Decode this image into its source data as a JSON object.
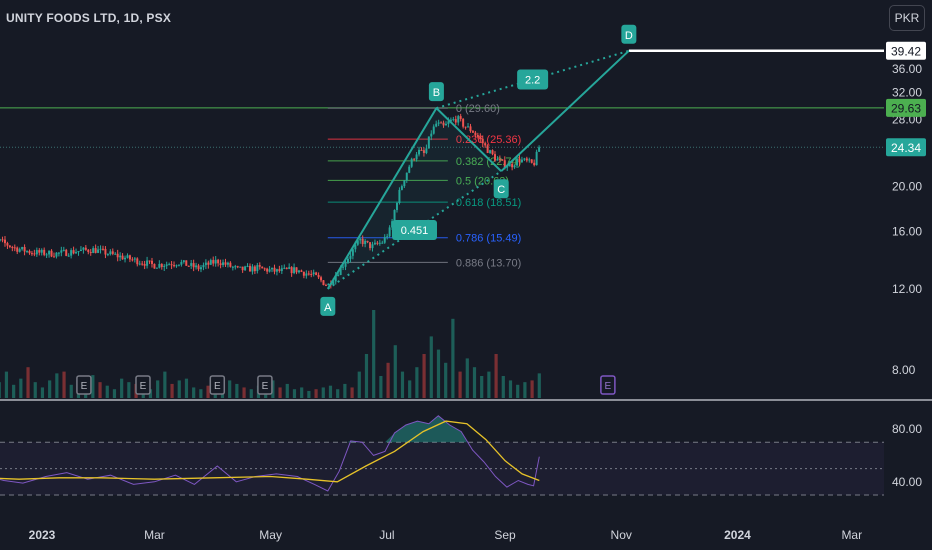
{
  "header": {
    "title": "UNITY FOODS LTD, 1D, PSX",
    "currency_label": "PKR"
  },
  "colors": {
    "background": "#161a25",
    "up": "#26a69a",
    "down": "#ef5350",
    "pattern": "#26a69a",
    "rsi_line": "#7e57c2",
    "rsi_ma": "#e6c229",
    "text": "#d1d4dc",
    "axis_text": "#d1d4dc",
    "fib_red": "#f23645",
    "fib_green": "#4caf50",
    "fib_teal": "#089981",
    "fib_gray": "#787b86",
    "fib_blue": "#2962ff"
  },
  "chart_data": [
    {
      "type": "candlestick",
      "title": "UNITY FOODS LTD, 1D, PSX",
      "ylim": [
        6.5,
        41.5
      ],
      "y_ticks": [
        {
          "value": 36,
          "label": "36.00"
        },
        {
          "value": 32,
          "label": "32.00"
        },
        {
          "value": 28,
          "label": "28.00"
        },
        {
          "value": 20,
          "label": "20.00"
        },
        {
          "value": 16,
          "label": "16.00"
        },
        {
          "value": 12,
          "label": "12.00"
        },
        {
          "value": 8,
          "label": "8.00"
        }
      ],
      "price_tags": [
        {
          "value": 39.42,
          "label": "39.42",
          "style": "white"
        },
        {
          "value": 29.63,
          "label": "29.63",
          "style": "green"
        },
        {
          "value": 24.34,
          "label": "24.34",
          "style": "teal"
        }
      ],
      "horizontal_lines": [
        {
          "value": 29.63,
          "style": "green-solid"
        },
        {
          "value": 24.34,
          "style": "teal-dotted"
        },
        {
          "value": 39.42,
          "style": "white-solid"
        }
      ],
      "x_ticks": [
        {
          "date": "2023-01-01",
          "label": "2023",
          "bold": true
        },
        {
          "date": "2023-03-01",
          "label": "Mar"
        },
        {
          "date": "2023-05-01",
          "label": "May"
        },
        {
          "date": "2023-07-01",
          "label": "Jul"
        },
        {
          "date": "2023-09-01",
          "label": "Sep"
        },
        {
          "date": "2023-11-01",
          "label": "Nov"
        },
        {
          "date": "2024-01-01",
          "label": "2024",
          "bold": true
        },
        {
          "date": "2024-03-01",
          "label": "Mar"
        }
      ],
      "price_path": [
        [
          "2022-12-01",
          15.6
        ],
        [
          "2022-12-10",
          15.2
        ],
        [
          "2022-12-18",
          14.7
        ],
        [
          "2022-12-27",
          14.4
        ],
        [
          "2023-01-08",
          14.3
        ],
        [
          "2023-01-20",
          14.5
        ],
        [
          "2023-01-28",
          14.6
        ],
        [
          "2023-02-08",
          14.2
        ],
        [
          "2023-02-20",
          13.8
        ],
        [
          "2023-03-01",
          13.5
        ],
        [
          "2023-03-14",
          13.7
        ],
        [
          "2023-03-24",
          13.3
        ],
        [
          "2023-04-03",
          13.8
        ],
        [
          "2023-04-14",
          13.2
        ],
        [
          "2023-04-24",
          13.3
        ],
        [
          "2023-05-04",
          13.1
        ],
        [
          "2023-05-14",
          13.2
        ],
        [
          "2023-05-24",
          12.8
        ],
        [
          "2023-05-31",
          12.2
        ],
        [
          "2023-06-05",
          13.0
        ],
        [
          "2023-06-11",
          14.1
        ],
        [
          "2023-06-17",
          15.3
        ],
        [
          "2023-06-23",
          14.8
        ],
        [
          "2023-06-29",
          15.2
        ],
        [
          "2023-07-03",
          16.2
        ],
        [
          "2023-07-06",
          18.5
        ],
        [
          "2023-07-10",
          20.8
        ],
        [
          "2023-07-13",
          22.3
        ],
        [
          "2023-07-17",
          23.9
        ],
        [
          "2023-07-21",
          23.5
        ],
        [
          "2023-07-24",
          26.1
        ],
        [
          "2023-07-27",
          27.4
        ],
        [
          "2023-07-31",
          26.9
        ],
        [
          "2023-08-03",
          27.7
        ],
        [
          "2023-08-07",
          28.1
        ],
        [
          "2023-08-11",
          27.0
        ],
        [
          "2023-08-15",
          26.4
        ],
        [
          "2023-08-19",
          25.3
        ],
        [
          "2023-08-23",
          24.0
        ],
        [
          "2023-08-27",
          23.0
        ],
        [
          "2023-08-31",
          22.4
        ],
        [
          "2023-09-04",
          22.2
        ],
        [
          "2023-09-08",
          22.9
        ],
        [
          "2023-09-13",
          22.6
        ],
        [
          "2023-09-16",
          22.3
        ],
        [
          "2023-09-19",
          24.34
        ]
      ],
      "volume_bars_relative": [
        0.2,
        0.25,
        0.18,
        0.3,
        0.15,
        0.22,
        0.35,
        0.18,
        0.12,
        0.2,
        0.28,
        0.3,
        0.15,
        0.12,
        0.2,
        0.26,
        0.18,
        0.14,
        0.1,
        0.22,
        0.18,
        0.16,
        0.12,
        0.1,
        0.2,
        0.3,
        0.16,
        0.2,
        0.22,
        0.12,
        0.1,
        0.14,
        0.18,
        0.24,
        0.2,
        0.16,
        0.12,
        0.1,
        0.14,
        0.16,
        0.2,
        0.12,
        0.16,
        0.1,
        0.12,
        0.08,
        0.1,
        0.12,
        0.14,
        0.1,
        0.16,
        0.12,
        0.3,
        0.5,
        1.0,
        0.25,
        0.4,
        0.6,
        0.3,
        0.2,
        0.35,
        0.5,
        0.7,
        0.55,
        0.4,
        0.9,
        0.3,
        0.45,
        0.35,
        0.25,
        0.3,
        0.5,
        0.25,
        0.2,
        0.15,
        0.18,
        0.2,
        0.28
      ],
      "earnings_markers": [
        {
          "date": "2023-01-23",
          "label": "E",
          "color": "#787b86"
        },
        {
          "date": "2023-02-23",
          "label": "E",
          "color": "#787b86"
        },
        {
          "date": "2023-04-03",
          "label": "E",
          "color": "#787b86"
        },
        {
          "date": "2023-04-28",
          "label": "E",
          "color": "#787b86"
        },
        {
          "date": "2023-10-25",
          "label": "E",
          "color": "#7e57c2"
        }
      ],
      "abcd_pattern": {
        "points": [
          {
            "label": "A",
            "date": "2023-05-31",
            "value": 12.0
          },
          {
            "label": "B",
            "date": "2023-07-27",
            "value": 29.6
          },
          {
            "label": "C",
            "date": "2023-08-30",
            "value": 21.6
          },
          {
            "label": "D",
            "date": "2023-11-05",
            "value": 39.42
          }
        ],
        "ratio_labels": [
          {
            "label": "0.451",
            "between": "A-C"
          },
          {
            "label": "2.2",
            "between": "B-D"
          }
        ]
      },
      "fibonacci": [
        {
          "label": "0 (29.60)",
          "value": 29.6,
          "color": "#787b86"
        },
        {
          "label": "0.236 (25.36)",
          "value": 25.36,
          "color": "#f23645"
        },
        {
          "label": "0.382 (22.74)",
          "value": 22.74,
          "color": "#4caf50"
        },
        {
          "label": "0.5 (20.63)",
          "value": 20.63,
          "color": "#4caf50"
        },
        {
          "label": "0.618 (18.51)",
          "value": 18.51,
          "color": "#089981"
        },
        {
          "label": "0.786 (15.49)",
          "value": 15.49,
          "color": "#2962ff"
        },
        {
          "label": "0.886 (13.70)",
          "value": 13.7,
          "color": "#787b86"
        }
      ]
    },
    {
      "type": "line",
      "ylim": [
        22,
        95
      ],
      "y_ticks": [
        {
          "value": 80,
          "label": "80.00"
        },
        {
          "value": 40,
          "label": "40.00"
        }
      ],
      "bands": {
        "upper": 70,
        "middle": 50,
        "lower": 30
      },
      "series": [
        {
          "color": "#7e57c2",
          "points": [
            [
              "2022-12-01",
              45
            ],
            [
              "2022-12-12",
              41
            ],
            [
              "2022-12-22",
              39
            ],
            [
              "2023-01-03",
              44
            ],
            [
              "2023-01-14",
              47
            ],
            [
              "2023-01-25",
              42
            ],
            [
              "2023-02-06",
              45
            ],
            [
              "2023-02-18",
              38
            ],
            [
              "2023-03-01",
              40
            ],
            [
              "2023-03-12",
              45
            ],
            [
              "2023-03-22",
              38
            ],
            [
              "2023-04-03",
              52
            ],
            [
              "2023-04-13",
              40
            ],
            [
              "2023-04-23",
              44
            ],
            [
              "2023-05-04",
              46
            ],
            [
              "2023-05-15",
              44
            ],
            [
              "2023-05-24",
              38
            ],
            [
              "2023-05-31",
              33
            ],
            [
              "2023-06-06",
              48
            ],
            [
              "2023-06-12",
              71
            ],
            [
              "2023-06-18",
              70
            ],
            [
              "2023-06-24",
              60
            ],
            [
              "2023-06-30",
              63
            ],
            [
              "2023-07-05",
              77
            ],
            [
              "2023-07-11",
              83
            ],
            [
              "2023-07-17",
              86
            ],
            [
              "2023-07-23",
              84
            ],
            [
              "2023-07-28",
              90
            ],
            [
              "2023-08-03",
              83
            ],
            [
              "2023-08-09",
              78
            ],
            [
              "2023-08-15",
              64
            ],
            [
              "2023-08-21",
              55
            ],
            [
              "2023-08-27",
              44
            ],
            [
              "2023-09-02",
              36
            ],
            [
              "2023-09-08",
              41
            ],
            [
              "2023-09-13",
              38
            ],
            [
              "2023-09-16",
              37
            ],
            [
              "2023-09-19",
              59
            ]
          ]
        },
        {
          "color": "#e6c229",
          "points": [
            [
              "2022-12-01",
              43
            ],
            [
              "2022-12-20",
              42
            ],
            [
              "2023-01-10",
              43
            ],
            [
              "2023-02-01",
              43
            ],
            [
              "2023-03-01",
              42
            ],
            [
              "2023-04-01",
              43
            ],
            [
              "2023-05-01",
              44
            ],
            [
              "2023-05-20",
              42
            ],
            [
              "2023-06-05",
              40
            ],
            [
              "2023-06-20",
              52
            ],
            [
              "2023-07-05",
              63
            ],
            [
              "2023-07-20",
              78
            ],
            [
              "2023-08-01",
              86
            ],
            [
              "2023-08-12",
              84
            ],
            [
              "2023-08-22",
              72
            ],
            [
              "2023-09-01",
              56
            ],
            [
              "2023-09-10",
              46
            ],
            [
              "2023-09-19",
              41
            ]
          ]
        }
      ]
    }
  ]
}
